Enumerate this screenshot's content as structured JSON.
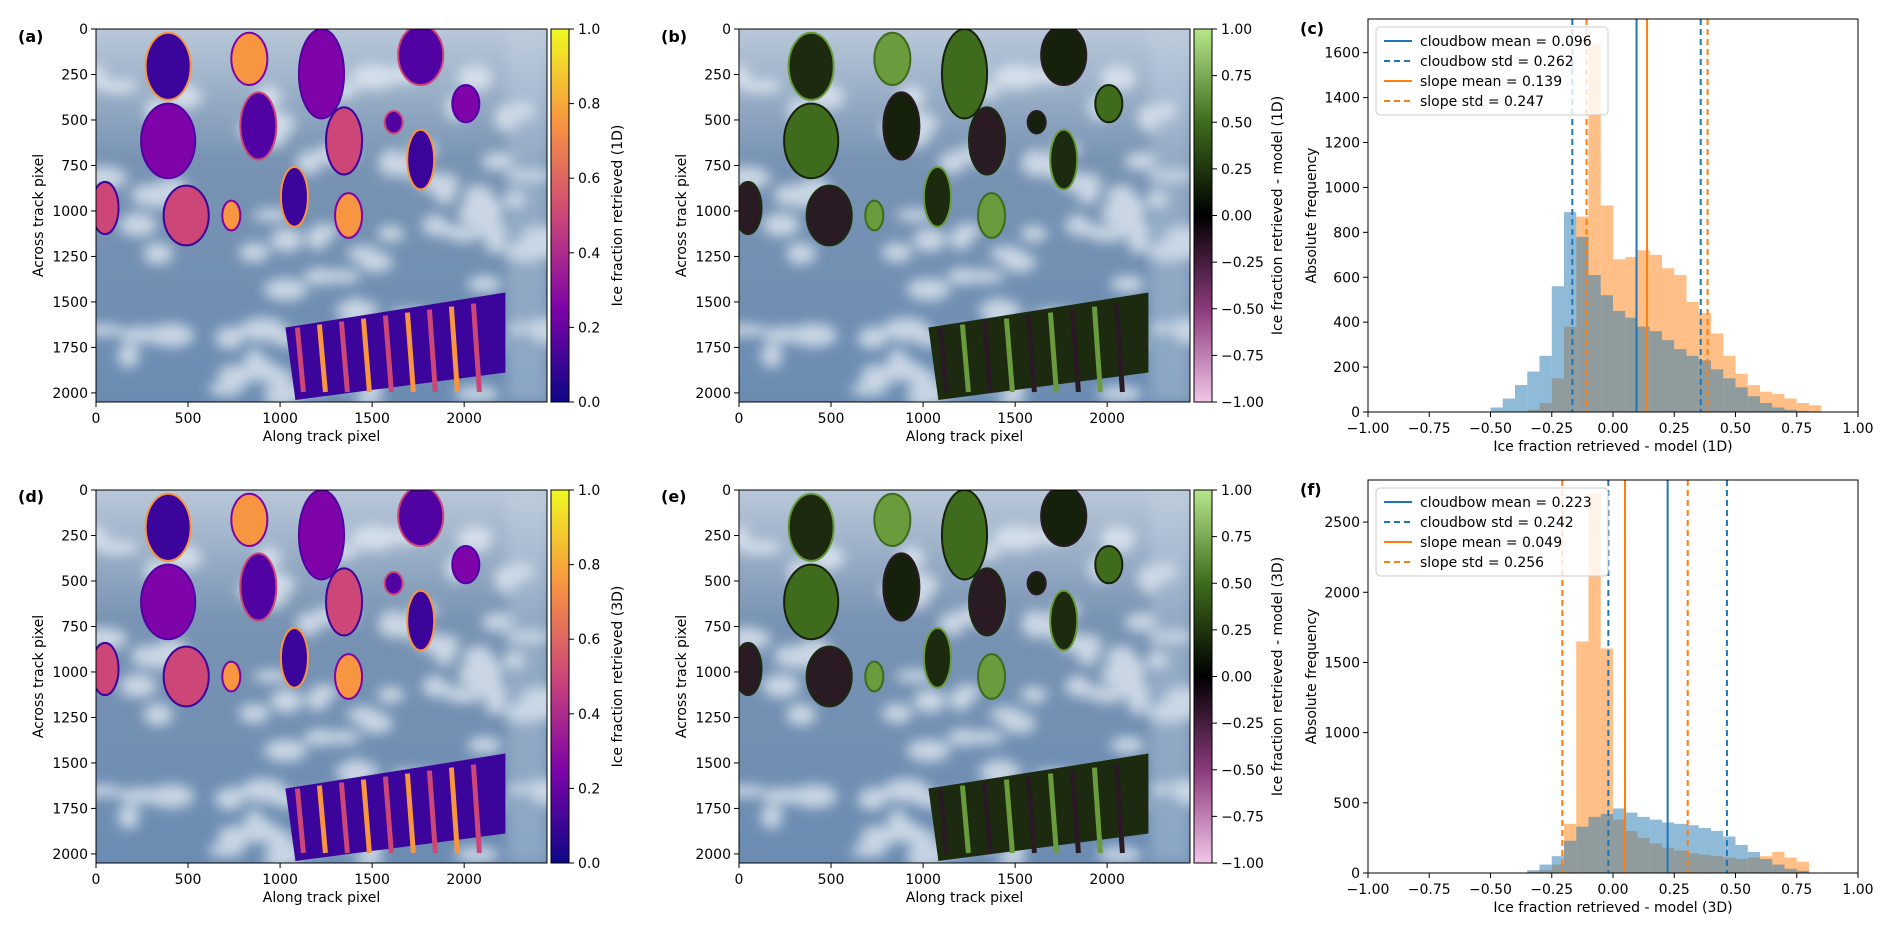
{
  "panels": {
    "a": {
      "label": "(a)",
      "xlabel": "Along track pixel",
      "ylabel": "Across track pixel",
      "cbar_label": "Ice fraction retrieved (1D)",
      "xticks": [
        "0",
        "500",
        "1000",
        "1500",
        "2000"
      ],
      "yticks": [
        "0",
        "250",
        "500",
        "750",
        "1000",
        "1250",
        "1500",
        "1750",
        "2000"
      ],
      "cbar_ticks": [
        "1.0",
        "0.8",
        "0.6",
        "0.4",
        "0.2",
        "0.0"
      ]
    },
    "b": {
      "label": "(b)",
      "xlabel": "Along track pixel",
      "ylabel": "Across track pixel",
      "cbar_label": "Ice fraction retrieved - model (1D)",
      "xticks": [
        "0",
        "500",
        "1000",
        "1500",
        "2000"
      ],
      "yticks": [
        "0",
        "250",
        "500",
        "750",
        "1000",
        "1250",
        "1500",
        "1750",
        "2000"
      ],
      "cbar_ticks": [
        "1.00",
        "0.75",
        "0.50",
        "0.25",
        "0.00",
        "−0.25",
        "−0.50",
        "−0.75",
        "−1.00"
      ]
    },
    "d": {
      "label": "(d)",
      "xlabel": "Along track pixel",
      "ylabel": "Across track pixel",
      "cbar_label": "Ice fraction retrieved (3D)",
      "xticks": [
        "0",
        "500",
        "1000",
        "1500",
        "2000"
      ],
      "yticks": [
        "0",
        "250",
        "500",
        "750",
        "1000",
        "1250",
        "1500",
        "1750",
        "2000"
      ],
      "cbar_ticks": [
        "1.0",
        "0.8",
        "0.6",
        "0.4",
        "0.2",
        "0.0"
      ]
    },
    "e": {
      "label": "(e)",
      "xlabel": "Along track pixel",
      "ylabel": "Across track pixel",
      "cbar_label": "Ice fraction retrieved - model (3D)",
      "xticks": [
        "0",
        "500",
        "1000",
        "1500",
        "2000"
      ],
      "yticks": [
        "0",
        "250",
        "500",
        "750",
        "1000",
        "1250",
        "1500",
        "1750",
        "2000"
      ],
      "cbar_ticks": [
        "1.00",
        "0.75",
        "0.50",
        "0.25",
        "0.00",
        "−0.25",
        "−0.50",
        "−0.75",
        "−1.00"
      ]
    }
  },
  "colors": {
    "cloudbow": "#1f77b4",
    "slope": "#ff7f0e",
    "cloudbow_fill": "#1f77b4",
    "slope_fill": "#ff7f0e",
    "sky": "#5b7fa6",
    "cloud": "#e7eef5"
  },
  "chart_data": [
    {
      "type": "bar",
      "label": "(c)",
      "xlabel": "Ice fraction retrieved - model (1D)",
      "ylabel": "Absolute frequency",
      "xlim": [
        -1.0,
        1.0
      ],
      "ylim": [
        0,
        1750
      ],
      "xticks": [
        "−1.00",
        "−0.75",
        "−0.50",
        "−0.25",
        "0.00",
        "0.25",
        "0.50",
        "0.75",
        "1.00"
      ],
      "yticks": [
        "0",
        "200",
        "400",
        "600",
        "800",
        "1000",
        "1200",
        "1400",
        "1600"
      ],
      "legend_position": "top-left",
      "legend": [
        "cloudbow mean = 0.096",
        "cloudbow std = 0.262",
        "slope mean = 0.139",
        "slope std = 0.247"
      ],
      "bin_width": 0.05,
      "bin_start": -0.5,
      "series": [
        {
          "name": "slope",
          "values": [
            0,
            0,
            0,
            10,
            40,
            150,
            380,
            870,
            1640,
            920,
            680,
            690,
            720,
            700,
            640,
            610,
            490,
            440,
            350,
            250,
            170,
            120,
            90,
            80,
            60,
            40,
            30
          ]
        },
        {
          "name": "cloudbow",
          "values": [
            20,
            60,
            120,
            180,
            250,
            560,
            890,
            780,
            610,
            520,
            450,
            420,
            380,
            360,
            320,
            280,
            250,
            230,
            190,
            150,
            110,
            70,
            40,
            20,
            10,
            5,
            2
          ]
        }
      ],
      "vlines": [
        {
          "series": "cloudbow",
          "kind": "mean",
          "x": 0.096
        },
        {
          "series": "cloudbow",
          "kind": "std",
          "x": -0.166
        },
        {
          "series": "cloudbow",
          "kind": "std",
          "x": 0.358
        },
        {
          "series": "slope",
          "kind": "mean",
          "x": 0.139
        },
        {
          "series": "slope",
          "kind": "std",
          "x": -0.108
        },
        {
          "series": "slope",
          "kind": "std",
          "x": 0.386
        }
      ]
    },
    {
      "type": "bar",
      "label": "(f)",
      "xlabel": "Ice fraction retrieved - model (3D)",
      "ylabel": "Absolute frequency",
      "xlim": [
        -1.0,
        1.0
      ],
      "ylim": [
        0,
        2800
      ],
      "xticks": [
        "−1.00",
        "−0.75",
        "−0.50",
        "−0.25",
        "0.00",
        "0.25",
        "0.50",
        "0.75",
        "1.00"
      ],
      "yticks": [
        "0",
        "500",
        "1000",
        "1500",
        "2000",
        "2500"
      ],
      "legend_position": "top-left",
      "legend": [
        "cloudbow mean = 0.223",
        "cloudbow std = 0.242",
        "slope mean = 0.049",
        "slope std = 0.256"
      ],
      "bin_width": 0.05,
      "bin_start": -0.5,
      "series": [
        {
          "name": "slope",
          "values": [
            0,
            0,
            0,
            10,
            20,
            60,
            350,
            1650,
            2700,
            1600,
            380,
            300,
            250,
            210,
            180,
            160,
            140,
            130,
            120,
            110,
            100,
            110,
            120,
            150,
            110,
            80
          ]
        },
        {
          "name": "cloudbow",
          "values": [
            0,
            0,
            0,
            20,
            60,
            120,
            230,
            330,
            400,
            420,
            460,
            430,
            400,
            380,
            360,
            350,
            340,
            320,
            300,
            260,
            200,
            150,
            100,
            60,
            30,
            15
          ]
        }
      ],
      "vlines": [
        {
          "series": "cloudbow",
          "kind": "mean",
          "x": 0.223
        },
        {
          "series": "cloudbow",
          "kind": "std",
          "x": -0.019
        },
        {
          "series": "cloudbow",
          "kind": "std",
          "x": 0.465
        },
        {
          "series": "slope",
          "kind": "mean",
          "x": 0.049
        },
        {
          "series": "slope",
          "kind": "std",
          "x": -0.207
        },
        {
          "series": "slope",
          "kind": "std",
          "x": 0.305
        }
      ]
    }
  ]
}
